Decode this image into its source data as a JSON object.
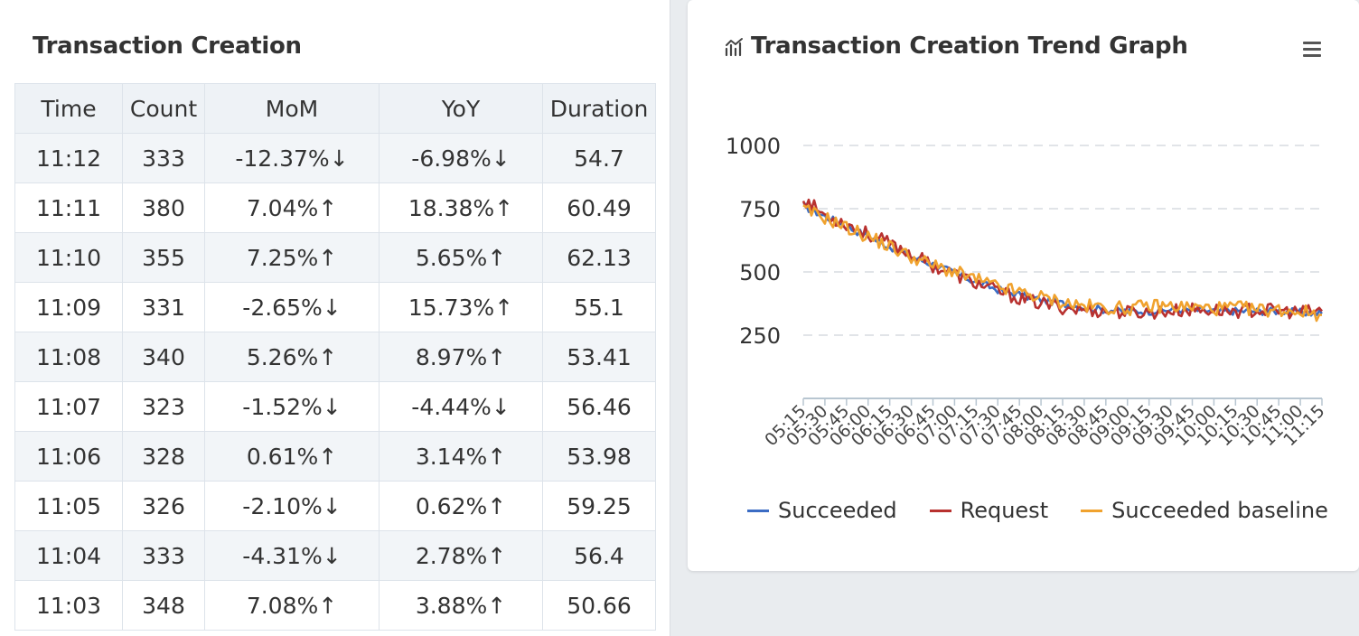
{
  "left_panel": {
    "title": "Transaction Creation",
    "columns": [
      "Time",
      "Count",
      "MoM",
      "YoY",
      "Duration"
    ],
    "rows": [
      {
        "time": "11:12",
        "count": "333",
        "mom": "-12.37%↓",
        "mom_class": "down-red",
        "yoy": "-6.98%↓",
        "yoy_class": "down-orange",
        "duration": "54.7"
      },
      {
        "time": "11:11",
        "count": "380",
        "mom": "7.04%↑",
        "mom_class": "up",
        "yoy": "18.38%↑",
        "yoy_class": "up",
        "duration": "60.49"
      },
      {
        "time": "11:10",
        "count": "355",
        "mom": "7.25%↑",
        "mom_class": "up",
        "yoy": "5.65%↑",
        "yoy_class": "up",
        "duration": "62.13"
      },
      {
        "time": "11:09",
        "count": "331",
        "mom": "-2.65%↓",
        "mom_class": "down-orange",
        "yoy": "15.73%↑",
        "yoy_class": "up",
        "duration": "55.1"
      },
      {
        "time": "11:08",
        "count": "340",
        "mom": "5.26%↑",
        "mom_class": "up",
        "yoy": "8.97%↑",
        "yoy_class": "up",
        "duration": "53.41"
      },
      {
        "time": "11:07",
        "count": "323",
        "mom": "-1.52%↓",
        "mom_class": "down-orange",
        "yoy": "-4.44%↓",
        "yoy_class": "down-orange",
        "duration": "56.46"
      },
      {
        "time": "11:06",
        "count": "328",
        "mom": "0.61%↑",
        "mom_class": "up",
        "yoy": "3.14%↑",
        "yoy_class": "up",
        "duration": "53.98"
      },
      {
        "time": "11:05",
        "count": "326",
        "mom": "-2.10%↓",
        "mom_class": "down-orange",
        "yoy": "0.62%↑",
        "yoy_class": "up",
        "duration": "59.25"
      },
      {
        "time": "11:04",
        "count": "333",
        "mom": "-4.31%↓",
        "mom_class": "down-orange",
        "yoy": "2.78%↑",
        "yoy_class": "up",
        "duration": "56.4"
      },
      {
        "time": "11:03",
        "count": "348",
        "mom": "7.08%↑",
        "mom_class": "up",
        "yoy": "3.88%↑",
        "yoy_class": "up",
        "duration": "50.66"
      }
    ]
  },
  "right_panel": {
    "title": "Transaction Creation Trend Graph",
    "icon": "chart-icon",
    "menu_icon": "hamburger-menu-icon"
  },
  "colors": {
    "up": "#3d8b40",
    "down_red": "#c4343c",
    "down_orange": "#e07b39",
    "succeeded": "#3b6cc4",
    "request": "#b8312f",
    "baseline": "#f0a22e"
  },
  "chart_data": {
    "type": "line",
    "title": "Transaction Creation Trend Graph",
    "xlabel": "",
    "ylabel": "",
    "ylim": [
      0,
      1000
    ],
    "yticks": [
      250,
      500,
      750,
      1000
    ],
    "x": [
      "05:15",
      "05:30",
      "05:45",
      "06:00",
      "06:15",
      "06:30",
      "06:45",
      "07:00",
      "07:15",
      "07:30",
      "07:45",
      "08:00",
      "08:15",
      "08:30",
      "08:45",
      "09:00",
      "09:15",
      "09:30",
      "09:45",
      "10:00",
      "10:15",
      "10:30",
      "10:45",
      "11:00",
      "11:15"
    ],
    "grid": true,
    "legend_position": "bottom",
    "series": [
      {
        "name": "Succeeded",
        "color": "#3b6cc4",
        "values": [
          760,
          720,
          680,
          640,
          600,
          560,
          530,
          495,
          460,
          430,
          410,
          390,
          375,
          360,
          350,
          345,
          345,
          350,
          350,
          345,
          345,
          345,
          345,
          340,
          335
        ]
      },
      {
        "name": "Request",
        "color": "#b8312f",
        "values": [
          790,
          725,
          690,
          650,
          610,
          570,
          525,
          490,
          455,
          425,
          395,
          375,
          360,
          350,
          345,
          340,
          340,
          345,
          350,
          350,
          345,
          350,
          345,
          340,
          345
        ]
      },
      {
        "name": "Succeeded baseline",
        "color": "#f0a22e",
        "values": [
          745,
          715,
          675,
          640,
          600,
          560,
          525,
          500,
          470,
          440,
          420,
          400,
          380,
          365,
          360,
          355,
          365,
          365,
          360,
          355,
          360,
          350,
          350,
          345,
          330
        ]
      }
    ]
  }
}
